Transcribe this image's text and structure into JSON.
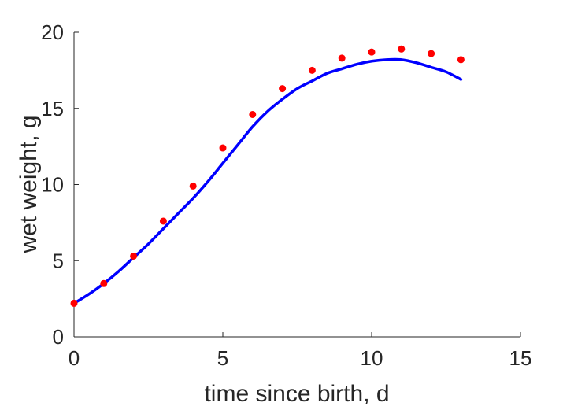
{
  "chart_data": {
    "type": "scatter",
    "title": "",
    "xlabel": "time since birth, d",
    "ylabel": "wet weight, g",
    "xlim": [
      0,
      15
    ],
    "ylim": [
      0,
      20
    ],
    "xticks": [
      "0",
      "5",
      "10",
      "15"
    ],
    "yticks": [
      "0",
      "5",
      "10",
      "15",
      "20"
    ],
    "grid": false,
    "legend": "none",
    "series": [
      {
        "type": "scatter",
        "color": "#ff0000",
        "x": [
          0,
          1,
          2,
          3,
          4,
          5,
          6,
          7,
          8,
          9,
          10,
          11,
          12,
          13
        ],
        "y": [
          2.2,
          3.5,
          5.3,
          7.6,
          9.9,
          12.4,
          14.6,
          16.3,
          17.5,
          18.3,
          18.7,
          18.9,
          18.6,
          18.2
        ]
      },
      {
        "type": "line",
        "color": "#0000ff",
        "x": [
          0,
          0.5,
          1,
          1.5,
          2,
          2.5,
          3,
          3.5,
          4,
          4.5,
          5,
          5.5,
          6,
          6.5,
          7,
          7.5,
          8,
          8.5,
          9,
          9.5,
          10,
          10.5,
          11,
          11.5,
          12,
          12.5,
          13
        ],
        "y": [
          2.2,
          2.8,
          3.5,
          4.3,
          5.2,
          6.1,
          7.1,
          8.1,
          9.1,
          10.2,
          11.4,
          12.6,
          13.8,
          14.8,
          15.6,
          16.3,
          16.8,
          17.3,
          17.6,
          17.9,
          18.1,
          18.2,
          18.2,
          18.0,
          17.7,
          17.4,
          16.9
        ]
      }
    ]
  }
}
